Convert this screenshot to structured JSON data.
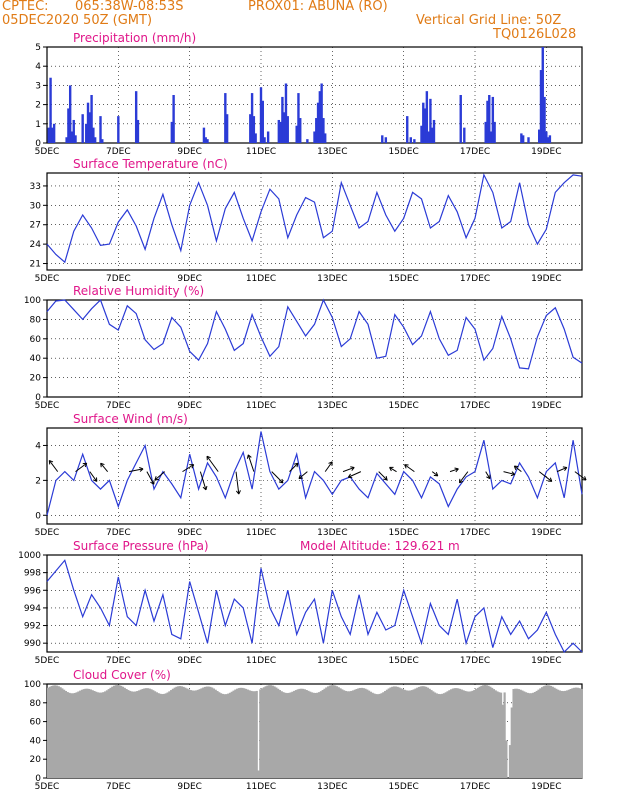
{
  "header": {
    "center": "CPTEC:",
    "coords": "065:38W-08:53S",
    "station": "PROX01: ABUNA (RO)",
    "date": "05DEC2020 50Z (GMT)",
    "grid_note": "Vertical Grid Line: 50Z",
    "run_id": "TQ0126L028"
  },
  "colors": {
    "header": "#e07b16",
    "title": "#e0168a",
    "series": "#2b3bd6",
    "cloud": "#a8a8a8",
    "grid": "#000000"
  },
  "x_axis": {
    "labels": [
      "5DEC",
      "7DEC",
      "9DEC",
      "11DEC",
      "13DEC",
      "15DEC",
      "17DEC",
      "19DEC"
    ],
    "label_days": [
      0,
      2,
      4,
      6,
      8,
      10,
      12,
      14
    ],
    "range_days": [
      0,
      15
    ]
  },
  "chart_data": [
    {
      "id": "precip",
      "type": "bar",
      "title": "Precipitation (mm/h)",
      "ylim": [
        0,
        5
      ],
      "yticks": [
        0,
        1,
        2,
        3,
        4,
        5
      ],
      "grid": true,
      "x_days": [
        0.05,
        0.1,
        0.15,
        0.2,
        0.55,
        0.6,
        0.65,
        0.7,
        0.75,
        0.8,
        1.0,
        1.1,
        1.15,
        1.2,
        1.25,
        1.3,
        1.35,
        1.5,
        1.55,
        2.0,
        2.5,
        2.55,
        3.5,
        3.55,
        4.4,
        4.45,
        4.5,
        5.0,
        5.05,
        5.7,
        5.75,
        5.8,
        5.85,
        6.0,
        6.05,
        6.1,
        6.2,
        6.5,
        6.55,
        6.6,
        6.65,
        6.7,
        6.75,
        7.0,
        7.05,
        7.1,
        7.3,
        7.5,
        7.55,
        7.6,
        7.65,
        7.7,
        7.75,
        7.8,
        9.4,
        9.5,
        10.1,
        10.2,
        10.3,
        10.5,
        10.55,
        10.6,
        10.65,
        10.7,
        10.75,
        10.8,
        10.85,
        11.6,
        11.7,
        12.3,
        12.35,
        12.4,
        12.45,
        12.5,
        12.55,
        13.3,
        13.35,
        13.5,
        13.8,
        13.85,
        13.9,
        13.95,
        14.0,
        14.05,
        14.1
      ],
      "values": [
        0.8,
        3.4,
        0.8,
        1.0,
        0.3,
        1.8,
        3.0,
        0.6,
        1.2,
        0.4,
        1.5,
        1.0,
        2.1,
        1.6,
        2.5,
        0.8,
        0.3,
        1.4,
        0.2,
        1.4,
        2.7,
        1.2,
        1.1,
        2.5,
        0.8,
        0.3,
        0.2,
        2.6,
        1.5,
        1.5,
        2.6,
        1.4,
        0.5,
        2.9,
        2.2,
        0.3,
        0.6,
        1.2,
        1.1,
        2.4,
        1.6,
        3.1,
        1.4,
        0.9,
        2.6,
        1.3,
        0.2,
        0.6,
        1.3,
        2.1,
        2.7,
        3.1,
        1.3,
        0.5,
        0.4,
        0.3,
        1.4,
        0.3,
        0.2,
        0.9,
        2.1,
        1.8,
        2.7,
        0.6,
        2.3,
        0.8,
        1.2,
        2.5,
        0.8,
        1.1,
        2.2,
        2.5,
        0.6,
        2.4,
        1.1,
        0.5,
        0.4,
        0.3,
        0.7,
        3.8,
        5.0,
        2.4,
        0.6,
        0.3,
        0.4
      ]
    },
    {
      "id": "temp",
      "type": "line",
      "title": "Surface Temperature (nC)",
      "ylim": [
        20,
        35
      ],
      "yticks": [
        21,
        24,
        27,
        30,
        33
      ],
      "grid": true,
      "x_days": [
        0,
        0.25,
        0.5,
        0.75,
        1,
        1.25,
        1.5,
        1.75,
        2,
        2.25,
        2.5,
        2.75,
        3,
        3.25,
        3.5,
        3.75,
        4,
        4.25,
        4.5,
        4.75,
        5,
        5.25,
        5.5,
        5.75,
        6,
        6.25,
        6.5,
        6.75,
        7,
        7.25,
        7.5,
        7.75,
        8,
        8.25,
        8.5,
        8.75,
        9,
        9.25,
        9.5,
        9.75,
        10,
        10.25,
        10.5,
        10.75,
        11,
        11.25,
        11.5,
        11.75,
        12,
        12.25,
        12.5,
        12.75,
        13,
        13.25,
        13.5,
        13.75,
        14,
        14.25,
        14.5,
        14.75,
        15
      ],
      "values": [
        24,
        22.4,
        21.2,
        26,
        28.5,
        26.5,
        23.8,
        24,
        27.4,
        29.3,
        26.8,
        23.2,
        28,
        31.7,
        27,
        23,
        30,
        33.5,
        30,
        24.5,
        29.5,
        32,
        28,
        24.5,
        29,
        32.5,
        31,
        25,
        28.5,
        31.2,
        30.5,
        25,
        26,
        33.5,
        30,
        26.5,
        27.5,
        32,
        28.5,
        26,
        28,
        32,
        31,
        26.5,
        27.5,
        31.5,
        29,
        25,
        28,
        34.7,
        32,
        26.5,
        27.5,
        33.5,
        27,
        24,
        26.3,
        32,
        33.5,
        34.7,
        34.5
      ]
    },
    {
      "id": "rh",
      "type": "line",
      "title": "Relative Humidity (%)",
      "ylim": [
        0,
        100
      ],
      "yticks": [
        0,
        20,
        40,
        60,
        80,
        100
      ],
      "grid": true,
      "x_days": [
        0,
        0.25,
        0.5,
        0.75,
        1,
        1.25,
        1.5,
        1.75,
        2,
        2.25,
        2.5,
        2.75,
        3,
        3.25,
        3.5,
        3.75,
        4,
        4.25,
        4.5,
        4.75,
        5,
        5.25,
        5.5,
        5.75,
        6,
        6.25,
        6.5,
        6.75,
        7,
        7.25,
        7.5,
        7.75,
        8,
        8.25,
        8.5,
        8.75,
        9,
        9.25,
        9.5,
        9.75,
        10,
        10.25,
        10.5,
        10.75,
        11,
        11.25,
        11.5,
        11.75,
        12,
        12.25,
        12.5,
        12.75,
        13,
        13.25,
        13.5,
        13.75,
        14,
        14.25,
        14.5,
        14.75,
        15
      ],
      "values": [
        88,
        99,
        100,
        90,
        80,
        91,
        100,
        75,
        69,
        94,
        86,
        59,
        49,
        55,
        82,
        72,
        47,
        38,
        55,
        88,
        70,
        48,
        55,
        85,
        62,
        42,
        52,
        93,
        78,
        63,
        75,
        100,
        82,
        52,
        60,
        88,
        75,
        40,
        42,
        85,
        72,
        54,
        63,
        88,
        60,
        43,
        48,
        82,
        70,
        38,
        50,
        83,
        60,
        30,
        29,
        62,
        84,
        92,
        70,
        41,
        35
      ]
    },
    {
      "id": "wind",
      "type": "line",
      "title": "Surface Wind (m/s)",
      "ylim": [
        -0.5,
        5
      ],
      "yticks": [
        0,
        2,
        4
      ],
      "grid": true,
      "x_days": [
        0,
        0.25,
        0.5,
        0.75,
        1,
        1.25,
        1.5,
        1.75,
        2,
        2.25,
        2.5,
        2.75,
        3,
        3.25,
        3.5,
        3.75,
        4,
        4.25,
        4.5,
        4.75,
        5,
        5.25,
        5.5,
        5.75,
        6,
        6.25,
        6.5,
        6.75,
        7,
        7.25,
        7.5,
        7.75,
        8,
        8.25,
        8.5,
        8.75,
        9,
        9.25,
        9.5,
        9.75,
        10,
        10.25,
        10.5,
        10.75,
        11,
        11.25,
        11.5,
        11.75,
        12,
        12.25,
        12.5,
        12.75,
        13,
        13.25,
        13.5,
        13.75,
        14,
        14.25,
        14.5,
        14.75,
        15
      ],
      "values": [
        0,
        2,
        2.5,
        2,
        3.5,
        2,
        1.5,
        2,
        0.5,
        2,
        3,
        4,
        1.5,
        2.5,
        1.8,
        1,
        3.5,
        1.5,
        3,
        2.2,
        1,
        2.5,
        3.6,
        1.5,
        4.8,
        2.5,
        1.5,
        2,
        3.5,
        1,
        2.5,
        2,
        1.2,
        2,
        2.2,
        1.5,
        1,
        2.4,
        1.8,
        1.2,
        2.5,
        2,
        1,
        2.2,
        1.8,
        0.5,
        1.5,
        2.2,
        2.5,
        4.3,
        1.5,
        2,
        1.8,
        3,
        2.2,
        1,
        2.5,
        3,
        1,
        4.3,
        1.2
      ],
      "vectors": {
        "x_days": [
          0.3,
          0.8,
          1.2,
          1.7,
          2.3,
          2.8,
          3.3,
          3.8,
          4.3,
          4.8,
          5.3,
          5.8,
          6.3,
          6.8,
          7.3,
          7.8,
          8.3,
          8.8,
          9.3,
          9.8,
          10.3,
          10.8,
          11.3,
          11.8,
          12.3,
          12.8,
          13.3,
          13.8,
          14.3,
          14.8
        ],
        "u": [
          -0.6,
          0.8,
          0.5,
          -0.5,
          1,
          0.5,
          -0.7,
          0.8,
          0.4,
          -0.8,
          0.2,
          -0.4,
          0.8,
          0.6,
          -0.6,
          0.5,
          0.8,
          -0.9,
          0.6,
          -0.5,
          -0.7,
          0.4,
          0.6,
          -0.6,
          0.3,
          0.8,
          -0.5,
          0.9,
          0.7,
          0.8
        ],
        "v": [
          0.8,
          0.6,
          -0.7,
          0.6,
          0.2,
          -0.9,
          -0.6,
          0.5,
          -1.3,
          1.1,
          -1.6,
          1.2,
          -0.8,
          0.6,
          -0.5,
          0.7,
          0.3,
          -0.4,
          -0.6,
          0.3,
          0.5,
          -0.3,
          0.2,
          -0.8,
          -0.5,
          -0.2,
          0.4,
          -0.7,
          0.3,
          -0.6
        ]
      }
    },
    {
      "id": "pres",
      "type": "line",
      "title": "Surface Pressure (hPa)",
      "subtitle": "Model Altitude: 129.621 m",
      "ylim": [
        989,
        1000
      ],
      "yticks": [
        990,
        992,
        994,
        996,
        998,
        1000
      ],
      "grid": true,
      "x_days": [
        0,
        0.25,
        0.5,
        0.75,
        1,
        1.25,
        1.5,
        1.75,
        2,
        2.25,
        2.5,
        2.75,
        3,
        3.25,
        3.5,
        3.75,
        4,
        4.25,
        4.5,
        4.75,
        5,
        5.25,
        5.5,
        5.75,
        6,
        6.25,
        6.5,
        6.75,
        7,
        7.25,
        7.5,
        7.75,
        8,
        8.25,
        8.5,
        8.75,
        9,
        9.25,
        9.5,
        9.75,
        10,
        10.25,
        10.5,
        10.75,
        11,
        11.25,
        11.5,
        11.75,
        12,
        12.25,
        12.5,
        12.75,
        13,
        13.25,
        13.5,
        13.75,
        14,
        14.25,
        14.5,
        14.75,
        15
      ],
      "values": [
        997,
        998.2,
        999.4,
        996,
        993,
        995.5,
        994,
        992,
        997.5,
        993,
        992,
        996,
        992.5,
        995.5,
        991,
        990.5,
        997,
        993.5,
        990,
        996,
        992,
        995,
        994,
        990,
        998.5,
        994,
        992,
        996,
        991,
        993.5,
        995,
        990,
        996,
        993,
        991,
        995.5,
        991,
        993.5,
        991.5,
        992,
        996,
        993,
        990,
        994.5,
        992,
        991,
        995,
        990,
        993,
        994,
        989.5,
        993,
        991,
        992.5,
        990.5,
        991.5,
        993.5,
        991,
        989,
        990,
        989
      ]
    },
    {
      "id": "cloud",
      "type": "bar",
      "title": "Cloud Cover (%)",
      "ylim": [
        0,
        100
      ],
      "yticks": [
        0,
        20,
        40,
        60,
        80,
        100
      ],
      "grid": true,
      "fill_color": "#a8a8a8",
      "base_level": 94,
      "dips": [
        {
          "day": 5.9,
          "value": 8
        },
        {
          "day": 12.75,
          "value": 78
        },
        {
          "day": 12.85,
          "value": 40
        },
        {
          "day": 12.9,
          "value": 0
        },
        {
          "day": 12.95,
          "value": 35
        },
        {
          "day": 13.0,
          "value": 75
        }
      ]
    }
  ]
}
